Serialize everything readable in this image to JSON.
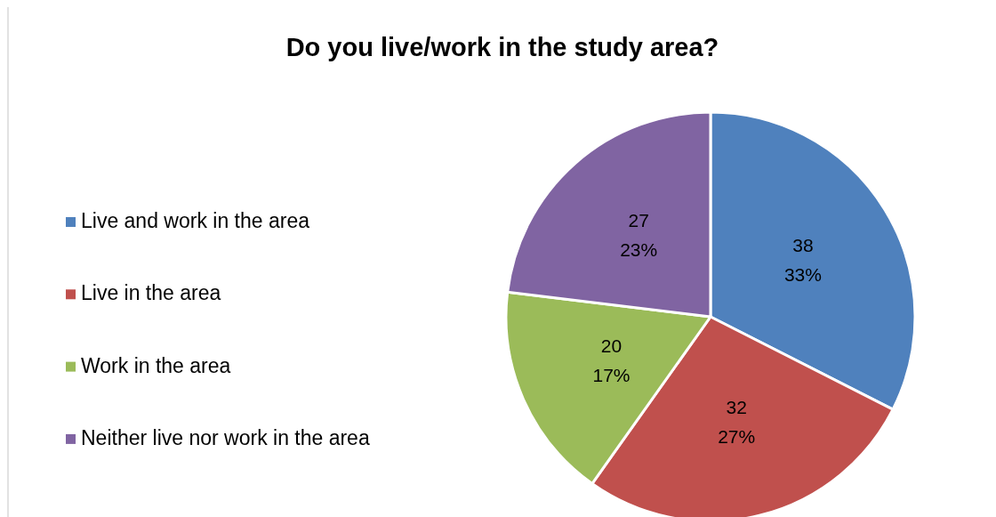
{
  "chart_data": {
    "type": "pie",
    "title": "Do you live/work in the study area?",
    "categories": [
      "Live and work in the area",
      "Live in the area",
      "Work in the area",
      "Neither live nor work in the area"
    ],
    "values": [
      38,
      32,
      20,
      27
    ],
    "colors": [
      "#4f81bd",
      "#c0504d",
      "#9bbb59",
      "#8064a2"
    ],
    "value_labels": [
      "38\n33%",
      "32\n27%",
      "20\n17%",
      "27\n23%"
    ],
    "legend": "left"
  }
}
